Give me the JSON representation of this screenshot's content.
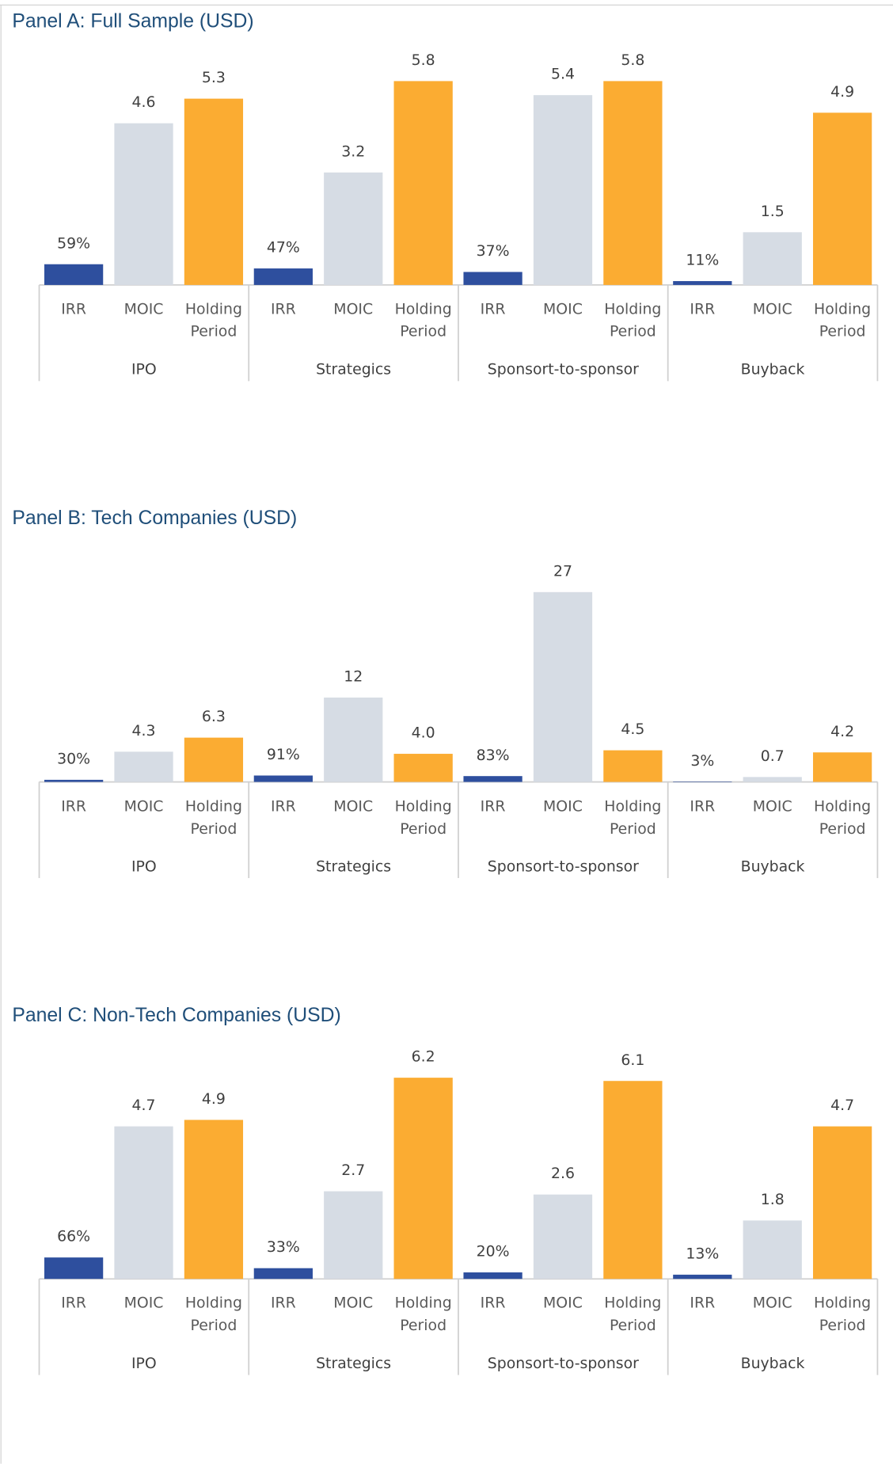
{
  "chart_data": [
    {
      "type": "bar",
      "title": "Panel A: Full Sample (USD)",
      "groups": [
        "IPO",
        "Strategics",
        "Sponsort-to-sponsor",
        "Buyback"
      ],
      "series": [
        {
          "name": "IRR",
          "color": "#2e4f9e",
          "values": [
            0.59,
            0.47,
            0.37,
            0.11
          ],
          "value_labels": [
            "59%",
            "47%",
            "37%",
            "11%"
          ]
        },
        {
          "name": "MOIC",
          "color": "#d6dce4",
          "values": [
            4.6,
            3.2,
            5.4,
            1.5
          ]
        },
        {
          "name": "Holding Period",
          "color": "#fbac32",
          "values": [
            5.3,
            5.8,
            5.8,
            4.9
          ]
        }
      ],
      "ylim": [
        0,
        6
      ]
    },
    {
      "type": "bar",
      "title": "Panel B: Tech Companies (USD)",
      "groups": [
        "IPO",
        "Strategics",
        "Sponsort-to-sponsor",
        "Buyback"
      ],
      "series": [
        {
          "name": "IRR",
          "color": "#2e4f9e",
          "values": [
            0.3,
            0.91,
            0.83,
            0.03
          ],
          "value_labels": [
            "30%",
            "91%",
            "83%",
            "3%"
          ]
        },
        {
          "name": "MOIC",
          "color": "#d6dce4",
          "values": [
            4.3,
            12,
            27,
            0.7
          ]
        },
        {
          "name": "Holding Period",
          "color": "#fbac32",
          "values": [
            6.3,
            4.0,
            4.5,
            4.2
          ],
          "value_labels": [
            "6.3",
            "4.0",
            "4.5",
            "4.2"
          ]
        }
      ],
      "ylim": [
        0,
        30
      ]
    },
    {
      "type": "bar",
      "title": "Panel C: Non-Tech Companies (USD)",
      "groups": [
        "IPO",
        "Strategics",
        "Sponsort-to-sponsor",
        "Buyback"
      ],
      "series": [
        {
          "name": "IRR",
          "color": "#2e4f9e",
          "values": [
            0.66,
            0.33,
            0.2,
            0.13
          ],
          "value_labels": [
            "66%",
            "33%",
            "20%",
            "13%"
          ]
        },
        {
          "name": "MOIC",
          "color": "#d6dce4",
          "values": [
            4.7,
            2.7,
            2.6,
            1.8
          ]
        },
        {
          "name": "Holding Period",
          "color": "#fbac32",
          "values": [
            4.9,
            6.2,
            6.1,
            4.7
          ]
        }
      ],
      "ylim": [
        0,
        6.5
      ]
    }
  ]
}
